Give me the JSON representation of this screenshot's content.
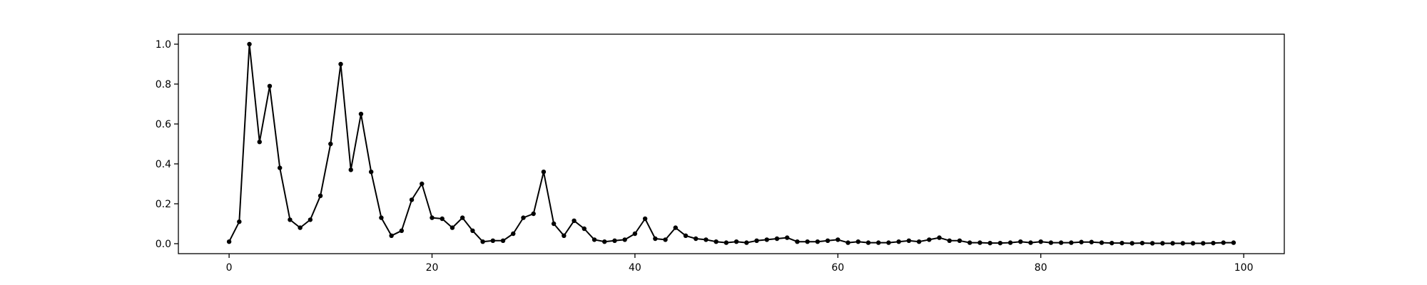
{
  "chart_data": {
    "type": "line",
    "title": "",
    "xlabel": "",
    "ylabel": "",
    "xlim": [
      -5,
      104
    ],
    "ylim": [
      -0.05,
      1.05
    ],
    "grid": false,
    "legend": "none",
    "line_color": "#000000",
    "x_ticks": [
      0,
      20,
      40,
      60,
      80,
      100
    ],
    "x_tick_labels": [
      "0",
      "20",
      "40",
      "60",
      "80",
      "100"
    ],
    "y_ticks": [
      0.0,
      0.2,
      0.4,
      0.6,
      0.8,
      1.0
    ],
    "y_tick_labels": [
      "0.0",
      "0.2",
      "0.4",
      "0.6",
      "0.8",
      "1.0"
    ],
    "x": [
      0,
      1,
      2,
      3,
      4,
      5,
      6,
      7,
      8,
      9,
      10,
      11,
      12,
      13,
      14,
      15,
      16,
      17,
      18,
      19,
      20,
      21,
      22,
      23,
      24,
      25,
      26,
      27,
      28,
      29,
      30,
      31,
      32,
      33,
      34,
      35,
      36,
      37,
      38,
      39,
      40,
      41,
      42,
      43,
      44,
      45,
      46,
      47,
      48,
      49,
      50,
      51,
      52,
      53,
      54,
      55,
      56,
      57,
      58,
      59,
      60,
      61,
      62,
      63,
      64,
      65,
      66,
      67,
      68,
      69,
      70,
      71,
      72,
      73,
      74,
      75,
      76,
      77,
      78,
      79,
      80,
      81,
      82,
      83,
      84,
      85,
      86,
      87,
      88,
      89,
      90,
      91,
      92,
      93,
      94,
      95,
      96,
      97,
      98,
      99
    ],
    "series": [
      {
        "values": [
          0.01,
          0.11,
          1.0,
          0.51,
          0.79,
          0.38,
          0.12,
          0.08,
          0.12,
          0.24,
          0.5,
          0.9,
          0.37,
          0.65,
          0.36,
          0.13,
          0.04,
          0.065,
          0.22,
          0.3,
          0.13,
          0.125,
          0.08,
          0.13,
          0.065,
          0.01,
          0.015,
          0.015,
          0.05,
          0.13,
          0.15,
          0.36,
          0.1,
          0.04,
          0.115,
          0.075,
          0.02,
          0.01,
          0.015,
          0.02,
          0.05,
          0.125,
          0.025,
          0.02,
          0.08,
          0.04,
          0.025,
          0.02,
          0.01,
          0.005,
          0.01,
          0.005,
          0.015,
          0.02,
          0.025,
          0.03,
          0.01,
          0.01,
          0.01,
          0.015,
          0.02,
          0.005,
          0.01,
          0.005,
          0.005,
          0.005,
          0.01,
          0.015,
          0.01,
          0.02,
          0.03,
          0.015,
          0.015,
          0.005,
          0.005,
          0.003,
          0.003,
          0.005,
          0.01,
          0.005,
          0.01,
          0.005,
          0.005,
          0.005,
          0.008,
          0.008,
          0.005,
          0.003,
          0.003,
          0.002,
          0.003,
          0.002,
          0.002,
          0.002,
          0.002,
          0.002,
          0.002,
          0.003,
          0.005,
          0.005
        ]
      }
    ]
  }
}
